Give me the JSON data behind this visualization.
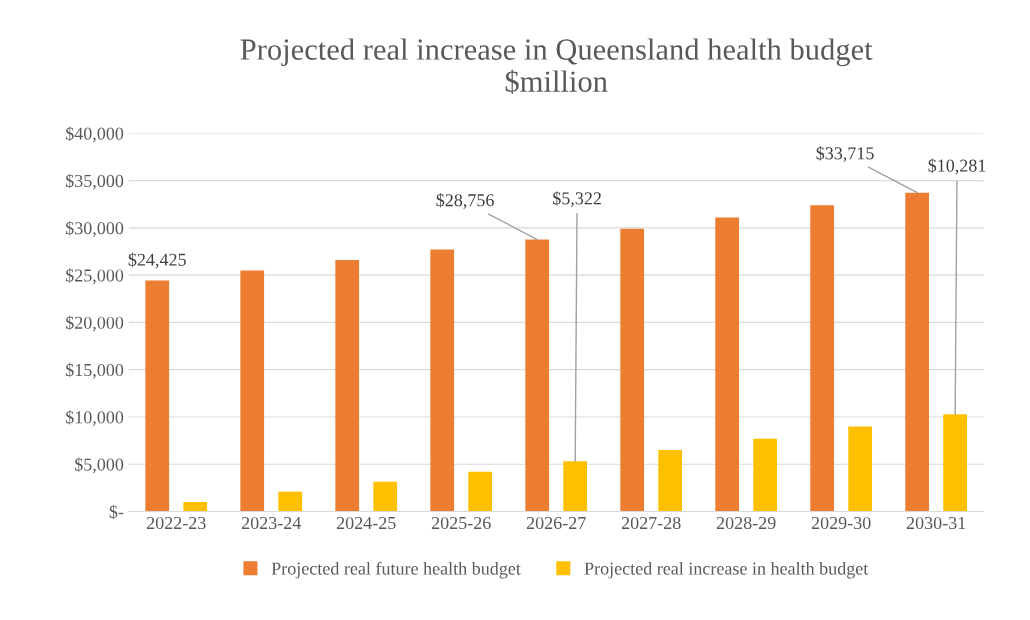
{
  "chart_data": {
    "type": "bar",
    "title": "Projected real increase in Queensland health budget\n$million",
    "categories": [
      "2022-23",
      "2023-24",
      "2024-25",
      "2025-26",
      "2026-27",
      "2027-28",
      "2028-29",
      "2029-30",
      "2030-31"
    ],
    "series": [
      {
        "name": "Projected real future health budget",
        "color": "#ed7d31",
        "values": [
          24425,
          25500,
          26600,
          27700,
          28756,
          29900,
          31100,
          32400,
          33715
        ],
        "value_labels": [
          "$24,425",
          null,
          null,
          null,
          "$28,756",
          null,
          null,
          null,
          "$33,715"
        ]
      },
      {
        "name": "Projected real increase in health budget",
        "color": "#ffc000",
        "values": [
          1000,
          2100,
          3150,
          4200,
          5322,
          6500,
          7700,
          9000,
          10281
        ],
        "value_labels": [
          null,
          null,
          null,
          null,
          "$5,322",
          null,
          null,
          null,
          "$10,281"
        ]
      }
    ],
    "ylim": [
      0,
      40000
    ],
    "yticks": [
      {
        "value": 0,
        "label": "$-"
      },
      {
        "value": 5000,
        "label": "$5,000"
      },
      {
        "value": 10000,
        "label": "$10,000"
      },
      {
        "value": 15000,
        "label": "$15,000"
      },
      {
        "value": 20000,
        "label": "$20,000"
      },
      {
        "value": 25000,
        "label": "$25,000"
      },
      {
        "value": 30000,
        "label": "$30,000"
      },
      {
        "value": 35000,
        "label": "$35,000"
      },
      {
        "value": 40000,
        "label": "$40,000"
      }
    ],
    "grid": "y",
    "legend": "bottom"
  }
}
